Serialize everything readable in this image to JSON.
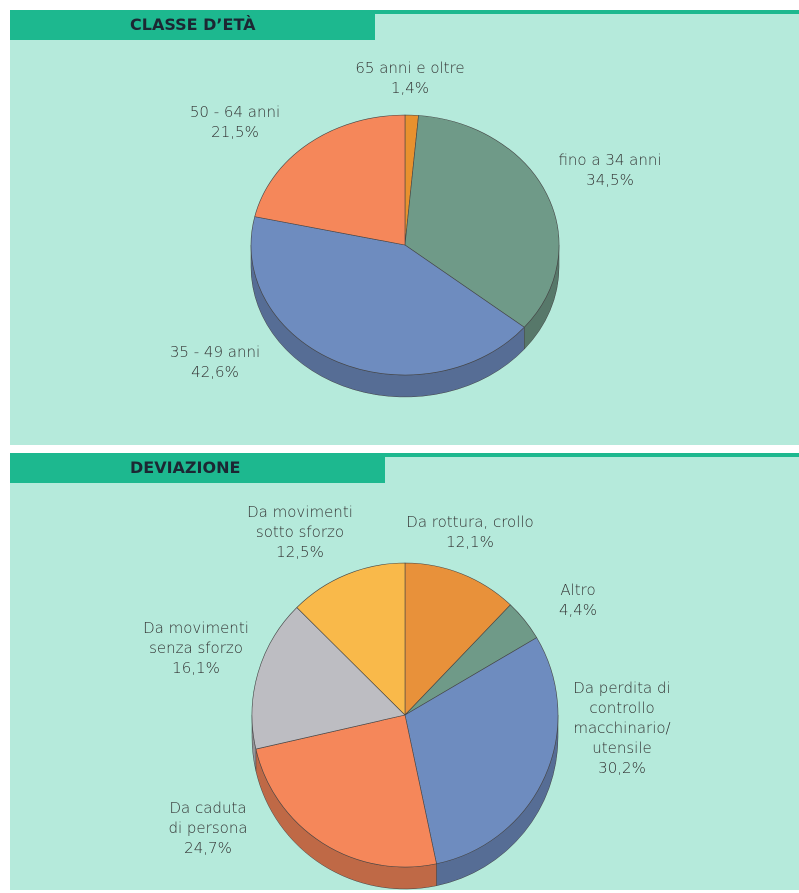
{
  "chart_data": [
    {
      "type": "pie",
      "title": "CLASSE D’ETÀ",
      "categories": [
        "65 anni e oltre",
        "fino a 34 anni",
        "35 - 49 anni",
        "50 - 64 anni"
      ],
      "values": [
        1.4,
        34.5,
        42.6,
        21.5
      ],
      "value_labels": [
        "1,4%",
        "34,5%",
        "42,6%",
        "21,5%"
      ],
      "colors": [
        "#e8912e",
        "#6f9a88",
        "#6e8cbf",
        "#f5875a"
      ]
    },
    {
      "type": "pie",
      "title": "DEVIAZIONE",
      "categories": [
        "Da rottura, crollo",
        "Altro",
        "Da perdita di controllo macchinario/ utensile",
        "Da caduta di persona",
        "Da movimenti senza sforzo",
        "Da movimenti sotto sforzo"
      ],
      "values": [
        12.1,
        4.4,
        30.2,
        24.7,
        16.1,
        12.5
      ],
      "value_labels": [
        "12,1%",
        "4,4%",
        "30,2%",
        "24,7%",
        "16,1%",
        "12,5%"
      ],
      "colors": [
        "#e8913a",
        "#6f9a88",
        "#6e8cbf",
        "#f5875a",
        "#bdbdc2",
        "#f9b94a"
      ]
    }
  ]
}
